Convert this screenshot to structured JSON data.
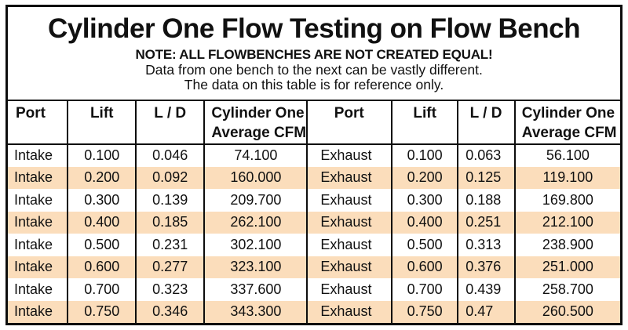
{
  "chart_data": {
    "type": "table",
    "title": "Cylinder One Flow Testing on Flow Bench",
    "notes": [
      "NOTE: ALL FLOWBENCHES ARE NOT CREATED EQUAL!",
      "Data from one bench to the next can be vastly different.",
      "The data on this table is for reference only."
    ],
    "columns": [
      {
        "label": "Port"
      },
      {
        "label": "Lift"
      },
      {
        "label": "L / D"
      },
      {
        "label": "Cylinder One",
        "label2": "Average CFM"
      },
      {
        "label": "Port"
      },
      {
        "label": "Lift"
      },
      {
        "label": "L / D"
      },
      {
        "label": "Cylinder One",
        "label2": "Average CFM"
      }
    ],
    "rows": [
      [
        "Intake",
        "0.100",
        "0.046",
        "74.100",
        "Exhaust",
        "0.100",
        "0.063",
        "56.100"
      ],
      [
        "Intake",
        "0.200",
        "0.092",
        "160.000",
        "Exhaust",
        "0.200",
        "0.125",
        "119.100"
      ],
      [
        "Intake",
        "0.300",
        "0.139",
        "209.700",
        "Exhaust",
        "0.300",
        "0.188",
        "169.800"
      ],
      [
        "Intake",
        "0.400",
        "0.185",
        "262.100",
        "Exhaust",
        "0.400",
        "0.251",
        "212.100"
      ],
      [
        "Intake",
        "0.500",
        "0.231",
        "302.100",
        "Exhaust",
        "0.500",
        "0.313",
        "238.900"
      ],
      [
        "Intake",
        "0.600",
        "0.277",
        "323.100",
        "Exhaust",
        "0.600",
        "0.376",
        "251.000"
      ],
      [
        "Intake",
        "0.700",
        "0.323",
        "337.600",
        "Exhaust",
        "0.700",
        "0.439",
        "258.700"
      ],
      [
        "Intake",
        "0.750",
        "0.346",
        "343.300",
        "Exhaust",
        "0.750",
        "0.47",
        "260.500"
      ]
    ],
    "colors": {
      "stripe": "#fbddbb",
      "border": "#0d0d0d",
      "background": "#ffffff",
      "text": "#111111"
    },
    "layout": {
      "legend": "none",
      "grid": "vertical-only",
      "row_striping": "alternate white/peach starting white"
    }
  }
}
